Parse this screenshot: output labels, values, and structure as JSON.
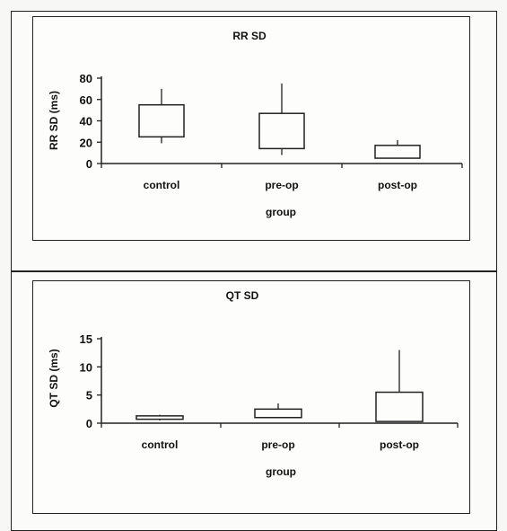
{
  "chart_data": [
    {
      "type": "box",
      "title": "RR SD",
      "xlabel": "group",
      "ylabel": "RR SD (ms)",
      "ylim": [
        0,
        80
      ],
      "yticks": [
        "80",
        "60",
        "40",
        "20",
        "0"
      ],
      "categories": [
        "control",
        "pre-op",
        "post-op"
      ],
      "boxes": [
        {
          "whisker_low": 19,
          "q1": 25,
          "q3": 55,
          "whisker_high": 70
        },
        {
          "whisker_low": 8,
          "q1": 14,
          "q3": 47,
          "whisker_high": 75
        },
        {
          "whisker_low": 5,
          "q1": 5,
          "q3": 17,
          "whisker_high": 22
        }
      ],
      "grid": false
    },
    {
      "type": "box",
      "title": "QT SD",
      "xlabel": "group",
      "ylabel": "QT SD (ms)",
      "ylim": [
        0,
        15
      ],
      "yticks": [
        "15",
        "10",
        "5",
        "0"
      ],
      "categories": [
        "control",
        "pre-op",
        "post-op"
      ],
      "boxes": [
        {
          "whisker_low": 0.5,
          "q1": 0.7,
          "q3": 1.3,
          "whisker_high": 1.5
        },
        {
          "whisker_low": 1.0,
          "q1": 1.0,
          "q3": 2.5,
          "whisker_high": 3.5
        },
        {
          "whisker_low": 0.3,
          "q1": 0.3,
          "q3": 5.5,
          "whisker_high": 13.0
        }
      ],
      "grid": false
    }
  ]
}
